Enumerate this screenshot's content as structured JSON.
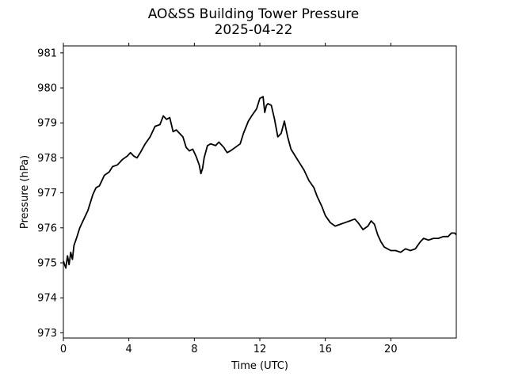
{
  "chart_data": {
    "type": "line",
    "title": "AO&SS Building Tower Pressure",
    "subtitle": "2025-04-22",
    "xlabel": "Time (UTC)",
    "ylabel": "Pressure (hPa)",
    "xlim": [
      0,
      24
    ],
    "ylim": [
      972.85,
      981.2
    ],
    "xticks": [
      0,
      4,
      8,
      12,
      16,
      20
    ],
    "yticks": [
      973,
      974,
      975,
      976,
      977,
      978,
      979,
      980,
      981
    ],
    "grid": false,
    "line_color": "#000000",
    "series": [
      {
        "x": [
          0,
          0.15,
          0.25,
          0.35,
          0.45,
          0.55,
          0.65,
          0.8,
          1.0,
          1.2,
          1.5,
          1.8,
          2.0,
          2.2,
          2.5,
          2.8,
          3.0,
          3.3,
          3.6,
          3.9,
          4.1,
          4.3,
          4.5,
          4.7,
          5.0,
          5.3,
          5.6,
          5.9,
          6.1,
          6.3,
          6.5,
          6.7,
          6.9,
          7.1,
          7.3,
          7.5,
          7.7,
          7.9,
          8.1,
          8.3,
          8.4,
          8.5,
          8.6,
          8.8,
          9.0,
          9.3,
          9.5,
          9.8,
          10.0,
          10.2,
          10.5,
          10.8,
          11.0,
          11.3,
          11.5,
          11.8,
          12.0,
          12.2,
          12.3,
          12.4,
          12.5,
          12.7,
          12.9,
          13.1,
          13.3,
          13.5,
          13.7,
          13.9,
          14.1,
          14.3,
          14.5,
          14.7,
          15.0,
          15.3,
          15.5,
          15.8,
          16.0,
          16.3,
          16.6,
          16.9,
          17.2,
          17.5,
          17.8,
          18.0,
          18.3,
          18.6,
          18.8,
          19.0,
          19.2,
          19.4,
          19.6,
          19.8,
          20.0,
          20.3,
          20.6,
          20.9,
          21.2,
          21.5,
          21.8,
          22.0,
          22.3,
          22.6,
          22.9,
          23.2,
          23.5,
          23.7,
          23.9,
          24.0
        ],
        "y": [
          975.05,
          974.85,
          975.2,
          974.95,
          975.3,
          975.1,
          975.5,
          975.7,
          976.0,
          976.2,
          976.5,
          976.95,
          977.15,
          977.2,
          977.5,
          977.6,
          977.75,
          977.8,
          977.95,
          978.05,
          978.15,
          978.05,
          978.0,
          978.15,
          978.4,
          978.6,
          978.9,
          978.95,
          979.2,
          979.1,
          979.15,
          978.75,
          978.8,
          978.7,
          978.6,
          978.3,
          978.2,
          978.25,
          978.05,
          977.8,
          977.55,
          977.7,
          978.0,
          978.35,
          978.4,
          978.35,
          978.45,
          978.3,
          978.15,
          978.2,
          978.3,
          978.4,
          978.7,
          979.05,
          979.2,
          979.4,
          979.7,
          979.75,
          979.3,
          979.5,
          979.55,
          979.5,
          979.1,
          978.6,
          978.7,
          979.05,
          978.6,
          978.25,
          978.1,
          977.95,
          977.8,
          977.65,
          977.35,
          977.15,
          976.9,
          976.6,
          976.35,
          976.15,
          976.05,
          976.1,
          976.15,
          976.2,
          976.25,
          976.15,
          975.95,
          976.05,
          976.2,
          976.1,
          975.8,
          975.6,
          975.45,
          975.4,
          975.35,
          975.35,
          975.3,
          975.4,
          975.35,
          975.4,
          975.6,
          975.7,
          975.65,
          975.7,
          975.7,
          975.75,
          975.75,
          975.85,
          975.85,
          975.8
        ]
      }
    ]
  }
}
